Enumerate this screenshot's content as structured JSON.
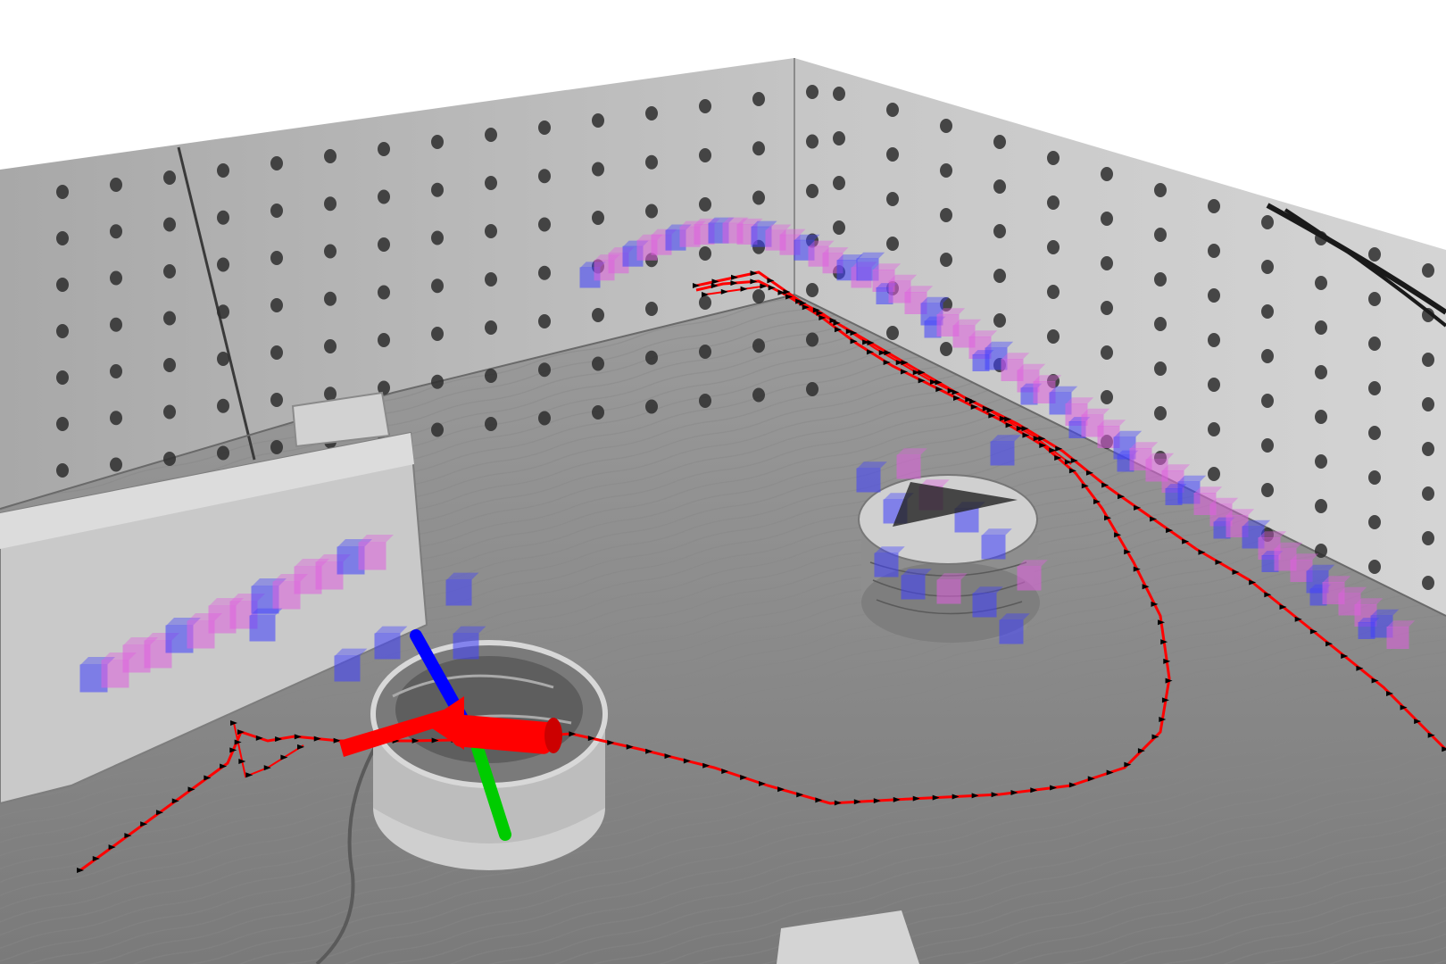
{
  "scene": {
    "description_visible_text": "",
    "colors": {
      "background": "#ffffff",
      "wall": "#b9b9b9",
      "wall_dark": "#9a9a9a",
      "floor": "#8f8f8f",
      "trajectory": "#ff0000",
      "trajectory_marker": "#000000",
      "map_voxel_occupied": "#e060e0",
      "map_voxel_uncertain": "#4040ff",
      "axis_x": "#ff0000",
      "axis_y": "#00cc00",
      "axis_z": "#0000ff",
      "wood": "#d8d8d8"
    },
    "icons": [
      "robot-pose-axes-icon",
      "trajectory-arrow-icon"
    ]
  }
}
